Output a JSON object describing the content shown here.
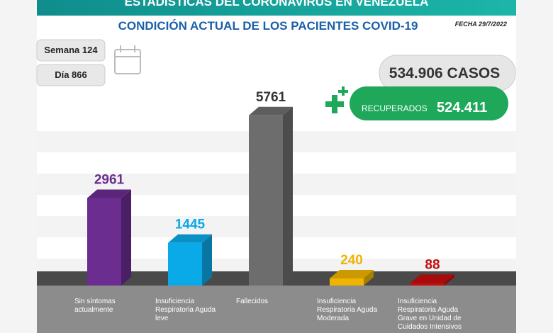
{
  "header": {
    "title": "ESTADÍSTICAS DEL CORONAVIRUS EN VENEZUELA",
    "subtitle": "CONDICIÓN ACTUAL DE LOS PACIENTES COVID-19",
    "date": "FECHA 29/7/2022"
  },
  "info": {
    "week": "Semana 124",
    "day": "Día 866",
    "cases": "534.906 CASOS",
    "recovered_label": "RECUPERADOS",
    "recovered": "524.411"
  },
  "chart_data": {
    "type": "bar",
    "categories": [
      "Sin síntomas actualmente",
      "Insuficiencia Respiratoria Aguda leve",
      "Fallecidos",
      "Insuficiencia Respiratoria Aguda Moderada",
      "Insuficiencia Respiratoria Aguda Grave en Unidad de Cuidados Intensivos"
    ],
    "values": [
      2961,
      1445,
      5761,
      240,
      88
    ],
    "colors": [
      "#6b2d90",
      "#0aa9e8",
      "#6d6d6d",
      "#f0b400",
      "#c40d0d"
    ]
  }
}
